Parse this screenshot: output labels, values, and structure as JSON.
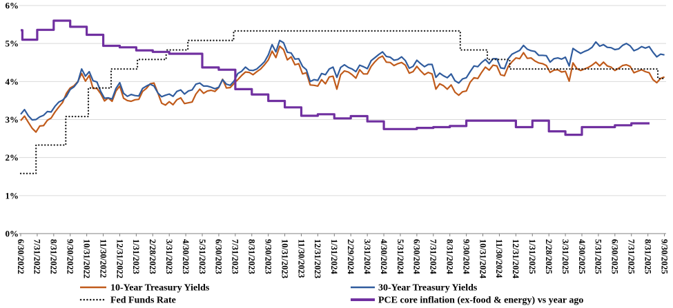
{
  "chart_data": {
    "type": "line",
    "title": "",
    "xlabel": "",
    "ylabel": "",
    "grid": "horizontal",
    "legend_position": "bottom",
    "y_axis": {
      "min": 0,
      "max": 6,
      "tick_labels": [
        "0%",
        "1%",
        "2%",
        "3%",
        "4%",
        "5%",
        "6%"
      ]
    },
    "x_labels": [
      "6/30/2022",
      "7/31/2022",
      "8/31/2022",
      "9/30/2022",
      "10/31/2022",
      "11/30/2022",
      "12/31/2022",
      "1/31/2023",
      "2/28/2023",
      "3/31/2023",
      "4/30/2023",
      "5/31/2023",
      "6/30/2023",
      "7/31/2023",
      "8/31/2023",
      "9/30/2023",
      "10/31/2023",
      "11/30/2023",
      "12/31/2023",
      "1/31/2024",
      "2/29/2024",
      "3/31/2024",
      "4/30/2024",
      "5/31/2024",
      "6/30/2024",
      "7/31/2024",
      "8/31/2024",
      "9/30/2024",
      "10/31/2024",
      "11/30/2024",
      "12/31/2024",
      "1/31/2025",
      "2/28/2025",
      "3/31/2025",
      "4/30/2025",
      "5/31/2025",
      "6/30/2025",
      "7/31/2025",
      "8/31/2025",
      "9/30/2025"
    ],
    "series": [
      {
        "name": "10-Year Treasury Yields",
        "color": "#C05A1A",
        "line_style": "solid",
        "line_width": 2.2,
        "sampling": "weekly",
        "values": [
          2.97,
          3.09,
          2.93,
          2.77,
          2.67,
          2.83,
          2.84,
          2.98,
          3.04,
          3.2,
          3.33,
          3.45,
          3.69,
          3.83,
          3.89,
          4.0,
          4.21,
          4.01,
          4.16,
          3.82,
          3.82,
          3.68,
          3.49,
          3.57,
          3.48,
          3.75,
          3.88,
          3.56,
          3.5,
          3.48,
          3.52,
          3.53,
          3.74,
          3.82,
          3.94,
          3.96,
          3.7,
          3.43,
          3.38,
          3.47,
          3.39,
          3.52,
          3.57,
          3.42,
          3.44,
          3.46,
          3.67,
          3.8,
          3.69,
          3.75,
          3.77,
          3.74,
          3.84,
          4.06,
          3.83,
          3.84,
          3.95,
          4.05,
          4.16,
          4.25,
          4.24,
          4.18,
          4.26,
          4.33,
          4.44,
          4.57,
          4.8,
          4.63,
          4.93,
          4.84,
          4.57,
          4.65,
          4.44,
          4.47,
          4.2,
          4.23,
          3.91,
          3.9,
          3.88,
          4.05,
          3.94,
          4.12,
          4.14,
          3.8,
          4.18,
          4.28,
          4.25,
          4.18,
          4.09,
          4.31,
          4.2,
          4.2,
          4.4,
          4.52,
          4.62,
          4.67,
          4.51,
          4.5,
          4.42,
          4.47,
          4.5,
          4.43,
          4.22,
          4.26,
          4.4,
          4.28,
          4.18,
          4.24,
          4.2,
          3.8,
          3.94,
          3.89,
          3.8,
          3.91,
          3.72,
          3.64,
          3.73,
          3.75,
          3.98,
          4.1,
          4.08,
          4.24,
          4.38,
          4.3,
          4.43,
          4.41,
          4.18,
          4.15,
          4.4,
          4.52,
          4.62,
          4.6,
          4.76,
          4.61,
          4.62,
          4.54,
          4.49,
          4.47,
          4.42,
          4.24,
          4.3,
          4.31,
          4.25,
          4.27,
          4.01,
          4.49,
          4.34,
          4.29,
          4.33,
          4.37,
          4.43,
          4.51,
          4.41,
          4.51,
          4.41,
          4.38,
          4.29,
          4.35,
          4.42,
          4.44,
          4.4,
          4.23,
          4.27,
          4.31,
          4.26,
          4.23,
          4.05,
          3.97,
          4.08,
          4.12
        ]
      },
      {
        "name": "30-Year Treasury Yields",
        "color": "#2F5B9D",
        "line_style": "solid",
        "line_width": 2.2,
        "sampling": "weekly",
        "values": [
          3.14,
          3.26,
          3.1,
          2.99,
          3.0,
          3.07,
          3.11,
          3.21,
          3.2,
          3.35,
          3.46,
          3.51,
          3.61,
          3.79,
          3.86,
          3.99,
          4.33,
          4.14,
          4.26,
          4.02,
          3.99,
          3.74,
          3.56,
          3.57,
          3.54,
          3.82,
          3.97,
          3.69,
          3.61,
          3.66,
          3.63,
          3.62,
          3.82,
          3.88,
          3.93,
          3.88,
          3.7,
          3.6,
          3.64,
          3.67,
          3.61,
          3.74,
          3.78,
          3.67,
          3.75,
          3.78,
          3.93,
          3.96,
          3.88,
          3.88,
          3.85,
          3.81,
          3.85,
          4.05,
          3.93,
          3.9,
          4.01,
          4.21,
          4.27,
          4.38,
          4.3,
          4.29,
          4.33,
          4.42,
          4.52,
          4.7,
          4.97,
          4.78,
          5.08,
          5.02,
          4.77,
          4.75,
          4.59,
          4.6,
          4.4,
          4.31,
          4.0,
          4.05,
          4.03,
          4.21,
          4.18,
          4.33,
          4.38,
          4.11,
          4.37,
          4.44,
          4.37,
          4.33,
          4.26,
          4.43,
          4.39,
          4.34,
          4.55,
          4.63,
          4.71,
          4.78,
          4.66,
          4.64,
          4.56,
          4.58,
          4.65,
          4.55,
          4.35,
          4.4,
          4.56,
          4.47,
          4.39,
          4.45,
          4.45,
          4.11,
          4.22,
          4.15,
          4.1,
          4.2,
          4.02,
          3.96,
          4.07,
          4.1,
          4.26,
          4.41,
          4.39,
          4.5,
          4.58,
          4.47,
          4.6,
          4.6,
          4.36,
          4.34,
          4.6,
          4.72,
          4.77,
          4.82,
          4.95,
          4.85,
          4.81,
          4.79,
          4.69,
          4.69,
          4.68,
          4.51,
          4.6,
          4.62,
          4.59,
          4.64,
          4.41,
          4.87,
          4.8,
          4.74,
          4.79,
          4.83,
          4.9,
          5.04,
          4.93,
          4.97,
          4.9,
          4.89,
          4.84,
          4.86,
          4.95,
          5.0,
          4.94,
          4.81,
          4.85,
          4.92,
          4.88,
          4.92,
          4.77,
          4.65,
          4.72,
          4.7
        ]
      },
      {
        "name": "Fed Funds Rate",
        "color": "#1A1A1A",
        "line_style": "dotted",
        "line_width": 2.3,
        "sampling": "step_breakpoints",
        "breakpoints": [
          [
            0,
            1.58
          ],
          [
            0.93,
            2.33
          ],
          [
            2.73,
            3.08
          ],
          [
            4.1,
            3.83
          ],
          [
            5.48,
            4.33
          ],
          [
            7.07,
            4.58
          ],
          [
            8.81,
            4.83
          ],
          [
            10.13,
            5.08
          ],
          [
            12.9,
            5.33
          ],
          [
            26.63,
            4.83
          ],
          [
            28.27,
            4.58
          ],
          [
            29.63,
            4.33
          ],
          [
            38.6,
            4.08
          ]
        ],
        "end_month": 39.05
      },
      {
        "name": "PCE core inflation (ex-food & energy) vs year ago",
        "color": "#7030A0",
        "line_style": "solid",
        "line_width": 3.2,
        "sampling": "step_breakpoints",
        "breakpoints": [
          [
            0,
            5.35
          ],
          [
            0.1,
            5.1
          ],
          [
            1,
            5.36
          ],
          [
            2,
            5.6
          ],
          [
            3,
            5.44
          ],
          [
            4,
            5.23
          ],
          [
            5,
            4.94
          ],
          [
            6,
            4.9
          ],
          [
            7,
            4.82
          ],
          [
            8,
            4.78
          ],
          [
            9,
            4.73
          ],
          [
            11,
            4.37
          ],
          [
            12,
            4.31
          ],
          [
            13,
            3.8
          ],
          [
            14,
            3.66
          ],
          [
            15,
            3.49
          ],
          [
            16,
            3.32
          ],
          [
            17,
            3.1
          ],
          [
            18,
            3.14
          ],
          [
            19,
            3.03
          ],
          [
            20,
            3.09
          ],
          [
            21,
            2.95
          ],
          [
            22,
            2.75
          ],
          [
            24,
            2.78
          ],
          [
            25,
            2.8
          ],
          [
            26,
            2.83
          ],
          [
            27,
            2.97
          ],
          [
            30,
            2.8
          ],
          [
            31,
            2.97
          ],
          [
            32,
            2.69
          ],
          [
            33,
            2.6
          ],
          [
            34,
            2.8
          ],
          [
            36,
            2.85
          ],
          [
            37,
            2.9
          ]
        ],
        "end_month": 38.1
      }
    ],
    "style": {
      "gridline_color": "#D9D9D9",
      "axis_color": "#808080",
      "background": "#FFFFFF"
    }
  }
}
